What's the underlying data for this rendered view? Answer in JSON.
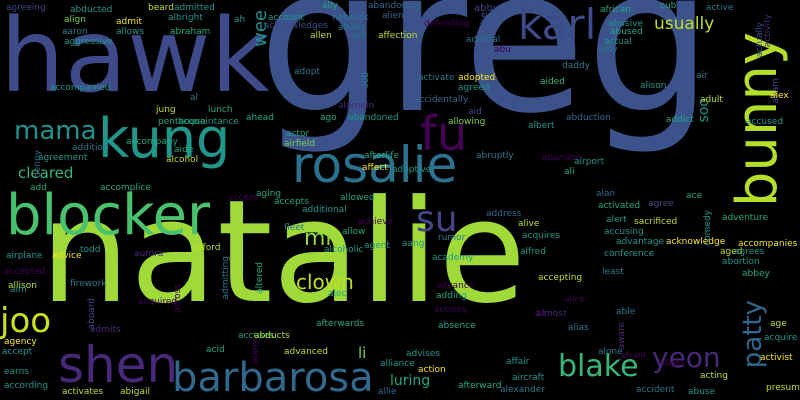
{
  "background": "#000000",
  "words": [
    {
      "text": "greg",
      "color": "#3b528b",
      "rotated": false
    },
    {
      "text": "natalie",
      "color": "#a0da39",
      "rotated": false
    },
    {
      "text": "hawk",
      "color": "#3e4a89",
      "rotated": false
    },
    {
      "text": "blocker",
      "color": "#4ac16d",
      "rotated": false
    },
    {
      "text": "rosalie",
      "color": "#2c728e",
      "rotated": false
    },
    {
      "text": "bunny",
      "color": "#b5de2b",
      "rotated": true
    },
    {
      "text": "kung",
      "color": "#1f988b",
      "rotated": false
    },
    {
      "text": "karl",
      "color": "#3e4a89",
      "rotated": false
    },
    {
      "text": "fu",
      "color": "#440154",
      "rotated": false
    },
    {
      "text": "barbarosa",
      "color": "#31688e",
      "rotated": false
    },
    {
      "text": "shen",
      "color": "#482878",
      "rotated": false
    },
    {
      "text": "su",
      "color": "#414487",
      "rotated": false
    },
    {
      "text": "mama",
      "color": "#21918c",
      "rotated": false
    },
    {
      "text": "joo",
      "color": "#c8e020",
      "rotated": false
    },
    {
      "text": "blake",
      "color": "#35b779",
      "rotated": false
    },
    {
      "text": "yeon",
      "color": "#482878",
      "rotated": false
    },
    {
      "text": "patty",
      "color": "#31688e",
      "rotated": true
    },
    {
      "text": "clown",
      "color": "#bddf26",
      "rotated": false
    },
    {
      "text": "usually",
      "color": "#bddf26",
      "rotated": false
    },
    {
      "text": "mi",
      "color": "#90d743",
      "rotated": false
    },
    {
      "text": "cleared",
      "color": "#35b779",
      "rotated": false
    },
    {
      "text": "wee",
      "color": "#21918c",
      "rotated": true
    },
    {
      "text": "luring",
      "color": "#22a884",
      "rotated": false
    },
    {
      "text": "li",
      "color": "#7ad151",
      "rotated": false
    },
    {
      "text": "soo",
      "color": "#1f988b",
      "rotated": true
    },
    {
      "text": "abby",
      "color": "#404688",
      "rotated": false
    },
    {
      "text": "abe",
      "color": "#3b528b",
      "rotated": true
    },
    {
      "text": "agreeing",
      "color": "#404688",
      "rotated": false
    },
    {
      "text": "abducted",
      "color": "#1f988b",
      "rotated": false
    },
    {
      "text": "beard",
      "color": "#bddf26",
      "rotated": false
    },
    {
      "text": "admitted",
      "color": "#1f988b",
      "rotated": false
    },
    {
      "text": "ally",
      "color": "#22a884",
      "rotated": false
    },
    {
      "text": "abandoning",
      "color": "#31688e",
      "rotated": false
    },
    {
      "text": "african",
      "color": "#22a884",
      "rotated": false
    },
    {
      "text": "cub",
      "color": "#22a884",
      "rotated": false
    },
    {
      "text": "active",
      "color": "#2a788e",
      "rotated": false
    },
    {
      "text": "align",
      "color": "#7ad151",
      "rotated": false
    },
    {
      "text": "admit",
      "color": "#f1e51d",
      "rotated": false
    },
    {
      "text": "albright",
      "color": "#1f988b",
      "rotated": false
    },
    {
      "text": "ah",
      "color": "#1f988b",
      "rotated": false
    },
    {
      "text": "account",
      "color": "#1f988b",
      "rotated": false
    },
    {
      "text": "network",
      "color": "#2a788e",
      "rotated": false
    },
    {
      "text": "alien",
      "color": "#31688e",
      "rotated": false
    },
    {
      "text": "abusive",
      "color": "#1f988b",
      "rotated": false
    },
    {
      "text": "activity",
      "color": "#482878",
      "rotated": true
    },
    {
      "text": "aaron",
      "color": "#2a788e",
      "rotated": false
    },
    {
      "text": "allows",
      "color": "#1f988b",
      "rotated": false
    },
    {
      "text": "abraham",
      "color": "#22a884",
      "rotated": false
    },
    {
      "text": "acknowledges",
      "color": "#3e4a89",
      "rotated": false
    },
    {
      "text": "ability",
      "color": "#2a788e",
      "rotated": false
    },
    {
      "text": "defending",
      "color": "#440154",
      "rotated": false
    },
    {
      "text": "abused",
      "color": "#22a884",
      "rotated": false
    },
    {
      "text": "actually",
      "color": "#3e4a89",
      "rotated": true
    },
    {
      "text": "aggressive",
      "color": "#1f988b",
      "rotated": false
    },
    {
      "text": "allen",
      "color": "#bddf26",
      "rotated": false
    },
    {
      "text": "act",
      "color": "#2a788e",
      "rotated": false
    },
    {
      "text": "affection",
      "color": "#bddf26",
      "rotated": false
    },
    {
      "text": "admiral",
      "color": "#2a788e",
      "rotated": false
    },
    {
      "text": "actual",
      "color": "#1f988b",
      "rotated": false
    },
    {
      "text": "abu",
      "color": "#440154",
      "rotated": false
    },
    {
      "text": "amy",
      "color": "#2a788e",
      "rotated": false
    },
    {
      "text": "adopt",
      "color": "#2a788e",
      "rotated": false
    },
    {
      "text": "activate",
      "color": "#2a788e",
      "rotated": false
    },
    {
      "text": "adopted",
      "color": "#fde725",
      "rotated": false
    },
    {
      "text": "daddy",
      "color": "#2a788e",
      "rotated": false
    },
    {
      "text": "air",
      "color": "#2a788e",
      "rotated": false
    },
    {
      "text": "adam",
      "color": "#3e4a89",
      "rotated": true
    },
    {
      "text": "sub",
      "color": "#2a788e",
      "rotated": true
    },
    {
      "text": "agreed",
      "color": "#1f988b",
      "rotated": false
    },
    {
      "text": "aided",
      "color": "#35b779",
      "rotated": false
    },
    {
      "text": "alison",
      "color": "#1f988b",
      "rotated": false
    },
    {
      "text": "alex",
      "color": "#fde725",
      "rotated": false
    },
    {
      "text": "accompanied",
      "color": "#1f988b",
      "rotated": false
    },
    {
      "text": "al",
      "color": "#2a788e",
      "rotated": false
    },
    {
      "text": "accidentally",
      "color": "#31688e",
      "rotated": false
    },
    {
      "text": "adult",
      "color": "#bddf26",
      "rotated": false
    },
    {
      "text": "jung",
      "color": "#bddf26",
      "rotated": false
    },
    {
      "text": "lunch",
      "color": "#22a884",
      "rotated": false
    },
    {
      "text": "alamein",
      "color": "#482878",
      "rotated": false
    },
    {
      "text": "aid",
      "color": "#3e4a89",
      "rotated": false
    },
    {
      "text": "penthouse",
      "color": "#22a884",
      "rotated": false
    },
    {
      "text": "ahead",
      "color": "#22a884",
      "rotated": false
    },
    {
      "text": "ago",
      "color": "#22a884",
      "rotated": false
    },
    {
      "text": "abandoned",
      "color": "#1f988b",
      "rotated": false
    },
    {
      "text": "allowing",
      "color": "#7ad151",
      "rotated": false
    },
    {
      "text": "abduction",
      "color": "#31688e",
      "rotated": false
    },
    {
      "text": "addict",
      "color": "#22a884",
      "rotated": false
    },
    {
      "text": "accused",
      "color": "#1f988b",
      "rotated": false
    },
    {
      "text": "acquaintance",
      "color": "#1f988b",
      "rotated": false
    },
    {
      "text": "albert",
      "color": "#1f988b",
      "rotated": false
    },
    {
      "text": "addition",
      "color": "#2a788e",
      "rotated": false
    },
    {
      "text": "actor",
      "color": "#22a884",
      "rotated": false
    },
    {
      "text": "airfield",
      "color": "#7ad151",
      "rotated": false
    },
    {
      "text": "denny",
      "color": "#31688e",
      "rotated": true
    },
    {
      "text": "agreement",
      "color": "#1f988b",
      "rotated": false
    },
    {
      "text": "accompany",
      "color": "#22a884",
      "rotated": false
    },
    {
      "text": "afterlife",
      "color": "#22a884",
      "rotated": false
    },
    {
      "text": "abruptly",
      "color": "#2a788e",
      "rotated": false
    },
    {
      "text": "abandon",
      "color": "#440154",
      "rotated": false
    },
    {
      "text": "airport",
      "color": "#1f988b",
      "rotated": false
    },
    {
      "text": "aide",
      "color": "#22a884",
      "rotated": false
    },
    {
      "text": "affect",
      "color": "#f1e51d",
      "rotated": false
    },
    {
      "text": "adoptive",
      "color": "#1f988b",
      "rotated": false
    },
    {
      "text": "ali",
      "color": "#22a884",
      "rotated": false
    },
    {
      "text": "add",
      "color": "#22a884",
      "rotated": false
    },
    {
      "text": "accomplice",
      "color": "#22a884",
      "rotated": false
    },
    {
      "text": "alcohol",
      "color": "#bddf26",
      "rotated": false
    },
    {
      "text": "access",
      "color": "#440154",
      "rotated": false
    },
    {
      "text": "alan",
      "color": "#31688e",
      "rotated": false
    },
    {
      "text": "ace",
      "color": "#22a884",
      "rotated": false
    },
    {
      "text": "aging",
      "color": "#22a884",
      "rotated": false
    },
    {
      "text": "accepts",
      "color": "#22a884",
      "rotated": false
    },
    {
      "text": "allowed",
      "color": "#22a884",
      "rotated": false
    },
    {
      "text": "activated",
      "color": "#22a884",
      "rotated": false
    },
    {
      "text": "agree",
      "color": "#3e4a89",
      "rotated": false
    },
    {
      "text": "comedy",
      "color": "#1f988b",
      "rotated": true
    },
    {
      "text": "adventure",
      "color": "#22a884",
      "rotated": false
    },
    {
      "text": "additional",
      "color": "#1f988b",
      "rotated": false
    },
    {
      "text": "achieve",
      "color": "#440154",
      "rotated": false
    },
    {
      "text": "address",
      "color": "#31688e",
      "rotated": false
    },
    {
      "text": "alert",
      "color": "#1f988b",
      "rotated": false
    },
    {
      "text": "sacrificed",
      "color": "#bddf26",
      "rotated": false
    },
    {
      "text": "todd",
      "color": "#1f988b",
      "rotated": false
    },
    {
      "text": "fleet",
      "color": "#2a788e",
      "rotated": false
    },
    {
      "text": "allow",
      "color": "#22a884",
      "rotated": false
    },
    {
      "text": "alive",
      "color": "#bddf26",
      "rotated": false
    },
    {
      "text": "accusing",
      "color": "#1f988b",
      "rotated": false
    },
    {
      "text": "acknowledge",
      "color": "#fde725",
      "rotated": false
    },
    {
      "text": "accompanies",
      "color": "#f1e51d",
      "rotated": false
    },
    {
      "text": "airplane",
      "color": "#1f988b",
      "rotated": false
    },
    {
      "text": "advice",
      "color": "#f1e51d",
      "rotated": false
    },
    {
      "text": "aurora",
      "color": "#482878",
      "rotated": false
    },
    {
      "text": "afford",
      "color": "#bddf26",
      "rotated": false
    },
    {
      "text": "alcoholic",
      "color": "#1f988b",
      "rotated": false
    },
    {
      "text": "agent",
      "color": "#1f988b",
      "rotated": false
    },
    {
      "text": "aang",
      "color": "#1f988b",
      "rotated": false
    },
    {
      "text": "rumor",
      "color": "#2a788e",
      "rotated": false
    },
    {
      "text": "acquires",
      "color": "#1f988b",
      "rotated": false
    },
    {
      "text": "advantage",
      "color": "#1f988b",
      "rotated": false
    },
    {
      "text": "aged",
      "color": "#bddf26",
      "rotated": false
    },
    {
      "text": "agrees",
      "color": "#1f988b",
      "rotated": false
    },
    {
      "text": "accepted",
      "color": "#440154",
      "rotated": false
    },
    {
      "text": "admitting",
      "color": "#2a788e",
      "rotated": true
    },
    {
      "text": "altered",
      "color": "#22a884",
      "rotated": true
    },
    {
      "text": "academy",
      "color": "#1f988b",
      "rotated": false
    },
    {
      "text": "alfred",
      "color": "#1f988b",
      "rotated": false
    },
    {
      "text": "conference",
      "color": "#1f988b",
      "rotated": false
    },
    {
      "text": "abortion",
      "color": "#1f988b",
      "rotated": false
    },
    {
      "text": "allison",
      "color": "#bddf26",
      "rotated": false
    },
    {
      "text": "firework",
      "color": "#2a788e",
      "rotated": false
    },
    {
      "text": "across",
      "color": "#440154",
      "rotated": true
    },
    {
      "text": "advance",
      "color": "#440154",
      "rotated": false
    },
    {
      "text": "accepting",
      "color": "#bddf26",
      "rotated": false
    },
    {
      "text": "least",
      "color": "#2a788e",
      "rotated": false
    },
    {
      "text": "abbey",
      "color": "#22a884",
      "rotated": false
    },
    {
      "text": "aim",
      "color": "#1f988b",
      "rotated": false
    },
    {
      "text": "acquired",
      "color": "#440154",
      "rotated": false
    },
    {
      "text": "alec",
      "color": "#22a884",
      "rotated": false
    },
    {
      "text": "adding",
      "color": "#22a884",
      "rotated": false
    },
    {
      "text": "alice",
      "color": "#440154",
      "rotated": false
    },
    {
      "text": "almost",
      "color": "#482878",
      "rotated": false
    },
    {
      "text": "aboard",
      "color": "#3e4a89",
      "rotated": true
    },
    {
      "text": "actress",
      "color": "#440154",
      "rotated": false
    },
    {
      "text": "ad",
      "color": "#440154",
      "rotated": false
    },
    {
      "text": "able",
      "color": "#2a788e",
      "rotated": false
    },
    {
      "text": "admits",
      "color": "#482878",
      "rotated": false
    },
    {
      "text": "aware",
      "color": "#482878",
      "rotated": true
    },
    {
      "text": "age",
      "color": "#bddf26",
      "rotated": false
    },
    {
      "text": "accuses",
      "color": "#22a884",
      "rotated": false
    },
    {
      "text": "abducts",
      "color": "#bddf26",
      "rotated": false
    },
    {
      "text": "afterwards",
      "color": "#22a884",
      "rotated": false
    },
    {
      "text": "absence",
      "color": "#22a884",
      "rotated": false
    },
    {
      "text": "alias",
      "color": "#2a788e",
      "rotated": false
    },
    {
      "text": "agency",
      "color": "#fde725",
      "rotated": false
    },
    {
      "text": "alarm",
      "color": "#440154",
      "rotated": true
    },
    {
      "text": "acquire",
      "color": "#1f988b",
      "rotated": false
    },
    {
      "text": "accept",
      "color": "#1f988b",
      "rotated": false
    },
    {
      "text": "acid",
      "color": "#22a884",
      "rotated": false
    },
    {
      "text": "advanced",
      "color": "#bddf26",
      "rotated": false
    },
    {
      "text": "alone",
      "color": "#2a788e",
      "rotated": false
    },
    {
      "text": "afraid",
      "color": "#440154",
      "rotated": false
    },
    {
      "text": "activist",
      "color": "#fde725",
      "rotated": false
    },
    {
      "text": "advises",
      "color": "#1f988b",
      "rotated": false
    },
    {
      "text": "earns",
      "color": "#1f988b",
      "rotated": false
    },
    {
      "text": "affair",
      "color": "#1f988b",
      "rotated": false
    },
    {
      "text": "aircraft",
      "color": "#1f988b",
      "rotated": false
    },
    {
      "text": "action",
      "color": "#fde725",
      "rotated": false
    },
    {
      "text": "acting",
      "color": "#bddf26",
      "rotated": false
    },
    {
      "text": "alliance",
      "color": "#1f988b",
      "rotated": false
    },
    {
      "text": "according",
      "color": "#1f988b",
      "rotated": false
    },
    {
      "text": "activates",
      "color": "#bddf26",
      "rotated": false
    },
    {
      "text": "abigail",
      "color": "#bddf26",
      "rotated": false
    },
    {
      "text": "afterward",
      "color": "#22a884",
      "rotated": false
    },
    {
      "text": "alexander",
      "color": "#2a788e",
      "rotated": false
    },
    {
      "text": "client",
      "color": "#440154",
      "rotated": false
    },
    {
      "text": "accident",
      "color": "#2a788e",
      "rotated": false
    },
    {
      "text": "abuse",
      "color": "#1f988b",
      "rotated": false
    },
    {
      "text": "presumed",
      "color": "#bddf26",
      "rotated": false
    },
    {
      "text": "allie",
      "color": "#31688e",
      "rotated": false
    }
  ]
}
